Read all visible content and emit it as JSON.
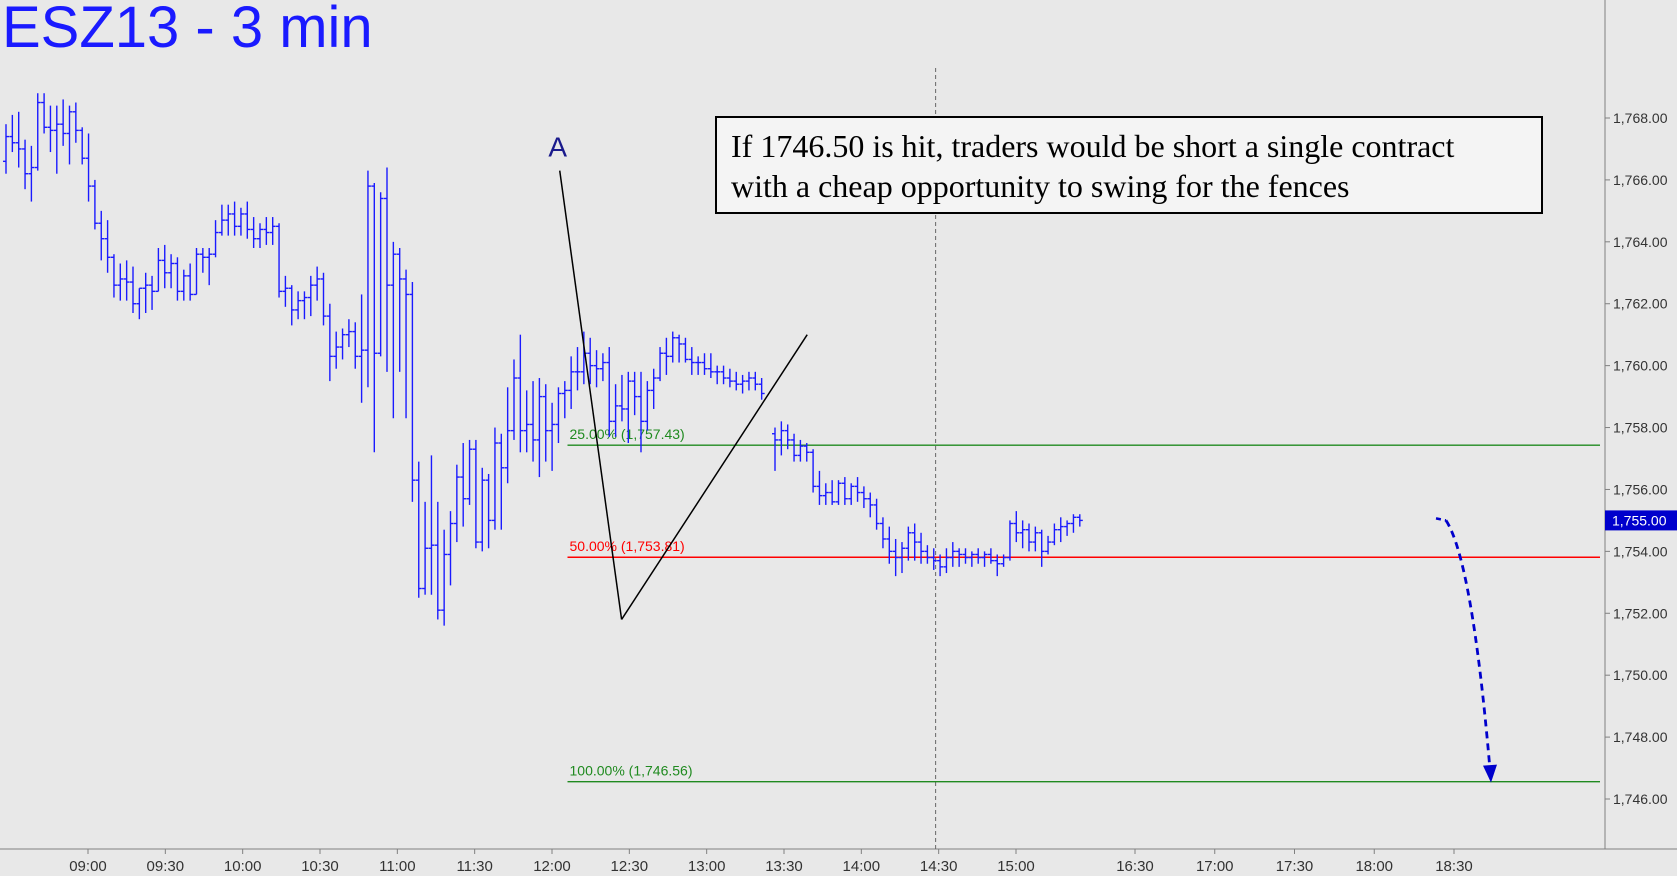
{
  "title": "ESZ13 - 3 min",
  "note": {
    "line1": "If 1746.50 is hit, traders would be short a single contract",
    "line2": "with a cheap opportunity to swing for the fences"
  },
  "colors": {
    "background": "#e8e8e8",
    "bars": "#1a1aff",
    "fib_green": "#1f8a1f",
    "fib_red": "#ff0000",
    "price_tag": "#0000cc"
  },
  "chart_data": {
    "type": "bar",
    "subtype": "ohlc",
    "title": "ESZ13 - 3 min",
    "ylim": [
      1745,
      1770
    ],
    "y_ticks": [
      "1,746.00",
      "1,748.00",
      "1,750.00",
      "1,752.00",
      "1,754.00",
      "1,756.00",
      "1,758.00",
      "1,760.00",
      "1,762.00",
      "1,764.00",
      "1,766.00",
      "1,768.00"
    ],
    "x_ticks": [
      "09:00",
      "09:30",
      "10:00",
      "10:30",
      "11:00",
      "11:30",
      "12:00",
      "12:30",
      "13:00",
      "13:30",
      "14:00",
      "14:30",
      "15:00",
      "16:30",
      "17:00",
      "17:30",
      "18:00",
      "18:30"
    ],
    "last_price": "1,755.00",
    "pattern_label": "A",
    "fib_levels": [
      {
        "label": "25.00% (1,757.43)",
        "value": 1757.43,
        "color": "green"
      },
      {
        "label": "50.00% (1,753.81)",
        "value": 1753.81,
        "color": "red"
      },
      {
        "label": "100.00% (1,746.56)",
        "value": 1746.56,
        "color": "green"
      }
    ],
    "pattern_points": [
      {
        "time": "12:03",
        "price": 1766.3
      },
      {
        "time": "12:27",
        "price": 1751.8
      },
      {
        "time": "13:39",
        "price": 1761.0
      }
    ],
    "projection": {
      "from_time": "18:30",
      "from_price": 1755.0,
      "to_price": 1746.56
    },
    "session_break_time": "15:15",
    "bars": [
      [
        1766.6,
        1767.8,
        1766.2,
        1767.4
      ],
      [
        1767.4,
        1768.1,
        1766.9,
        1767.2
      ],
      [
        1767.2,
        1768.2,
        1766.4,
        1767.0
      ],
      [
        1767.0,
        1767.3,
        1765.7,
        1766.2
      ],
      [
        1766.2,
        1767.1,
        1765.3,
        1766.4
      ],
      [
        1766.4,
        1768.8,
        1766.3,
        1768.5
      ],
      [
        1768.5,
        1768.8,
        1767.5,
        1767.7
      ],
      [
        1767.7,
        1768.4,
        1766.9,
        1767.6
      ],
      [
        1767.6,
        1768.4,
        1766.2,
        1767.8
      ],
      [
        1767.8,
        1768.6,
        1767.1,
        1767.5
      ],
      [
        1767.5,
        1768.4,
        1766.5,
        1768.2
      ],
      [
        1768.2,
        1768.5,
        1767.2,
        1767.6
      ],
      [
        1767.6,
        1767.7,
        1766.5,
        1766.7
      ],
      [
        1766.7,
        1767.5,
        1765.3,
        1765.8
      ],
      [
        1765.8,
        1766.0,
        1764.4,
        1764.6
      ],
      [
        1764.6,
        1765.0,
        1763.4,
        1764.1
      ],
      [
        1764.1,
        1764.7,
        1763.0,
        1763.5
      ],
      [
        1763.5,
        1763.6,
        1762.2,
        1762.6
      ],
      [
        1762.6,
        1763.3,
        1762.1,
        1762.8
      ],
      [
        1762.8,
        1763.4,
        1762.1,
        1762.7
      ],
      [
        1762.7,
        1763.2,
        1761.7,
        1762.0
      ],
      [
        1762.0,
        1762.5,
        1761.5,
        1762.5
      ],
      [
        1762.5,
        1763.0,
        1761.7,
        1762.6
      ],
      [
        1762.6,
        1762.9,
        1761.8,
        1762.4
      ],
      [
        1762.4,
        1763.8,
        1762.4,
        1763.4
      ],
      [
        1763.4,
        1763.9,
        1762.5,
        1763.0
      ],
      [
        1763.0,
        1763.6,
        1762.5,
        1763.3
      ],
      [
        1763.3,
        1763.5,
        1762.1,
        1762.4
      ],
      [
        1762.4,
        1763.1,
        1762.1,
        1762.9
      ],
      [
        1762.9,
        1763.3,
        1762.1,
        1762.3
      ],
      [
        1762.3,
        1763.8,
        1762.3,
        1763.6
      ],
      [
        1763.6,
        1763.8,
        1763.0,
        1763.5
      ],
      [
        1763.5,
        1763.8,
        1762.6,
        1763.6
      ],
      [
        1763.6,
        1764.7,
        1763.5,
        1764.3
      ],
      [
        1764.3,
        1765.2,
        1764.2,
        1764.7
      ],
      [
        1764.7,
        1765.2,
        1764.2,
        1764.9
      ],
      [
        1764.9,
        1765.3,
        1764.2,
        1764.5
      ],
      [
        1764.5,
        1765.1,
        1764.2,
        1764.9
      ],
      [
        1764.9,
        1765.3,
        1764.1,
        1764.4
      ],
      [
        1764.4,
        1764.8,
        1763.8,
        1764.1
      ],
      [
        1764.1,
        1764.6,
        1763.8,
        1764.4
      ],
      [
        1764.4,
        1764.8,
        1763.9,
        1764.3
      ],
      [
        1764.3,
        1764.8,
        1763.9,
        1764.5
      ],
      [
        1764.5,
        1764.6,
        1762.2,
        1762.4
      ],
      [
        1762.4,
        1762.9,
        1761.9,
        1762.5
      ],
      [
        1762.5,
        1762.6,
        1761.3,
        1761.8
      ],
      [
        1761.8,
        1762.4,
        1761.5,
        1762.1
      ],
      [
        1762.1,
        1762.4,
        1761.5,
        1762.2
      ],
      [
        1762.2,
        1762.9,
        1761.6,
        1762.6
      ],
      [
        1762.6,
        1763.2,
        1762.1,
        1762.8
      ],
      [
        1762.8,
        1763.0,
        1761.3,
        1761.6
      ],
      [
        1761.6,
        1762.0,
        1759.5,
        1760.3
      ],
      [
        1760.3,
        1761.1,
        1759.9,
        1760.6
      ],
      [
        1760.6,
        1761.2,
        1760.2,
        1761.0
      ],
      [
        1761.0,
        1761.5,
        1760.6,
        1761.1
      ],
      [
        1761.1,
        1761.4,
        1759.9,
        1760.3
      ],
      [
        1760.3,
        1762.3,
        1758.8,
        1760.5
      ],
      [
        1760.5,
        1766.3,
        1759.3,
        1765.8
      ],
      [
        1765.8,
        1765.9,
        1757.2,
        1760.4
      ],
      [
        1760.4,
        1765.6,
        1760.3,
        1765.4
      ],
      [
        1765.4,
        1766.4,
        1759.8,
        1762.6
      ],
      [
        1762.6,
        1764.0,
        1758.3,
        1763.6
      ],
      [
        1763.6,
        1763.8,
        1759.8,
        1762.8
      ],
      [
        1762.8,
        1763.1,
        1758.3,
        1762.3
      ],
      [
        1762.3,
        1762.7,
        1755.6,
        1756.3
      ],
      [
        1756.3,
        1756.9,
        1752.5,
        1752.8
      ],
      [
        1752.8,
        1755.6,
        1752.6,
        1754.1
      ],
      [
        1754.1,
        1757.1,
        1752.6,
        1754.2
      ],
      [
        1754.2,
        1755.6,
        1751.8,
        1752.1
      ],
      [
        1752.1,
        1754.7,
        1751.6,
        1753.9
      ],
      [
        1753.9,
        1755.3,
        1752.9,
        1754.9
      ],
      [
        1754.9,
        1756.8,
        1754.3,
        1756.4
      ],
      [
        1756.4,
        1757.5,
        1754.8,
        1755.7
      ],
      [
        1755.7,
        1757.6,
        1755.5,
        1757.3
      ],
      [
        1757.3,
        1757.6,
        1754.1,
        1754.3
      ],
      [
        1754.3,
        1756.7,
        1754.0,
        1756.3
      ],
      [
        1756.3,
        1756.5,
        1754.1,
        1755.0
      ],
      [
        1755.0,
        1758.0,
        1754.7,
        1757.5
      ],
      [
        1757.5,
        1757.8,
        1754.7,
        1756.7
      ],
      [
        1756.7,
        1759.3,
        1756.2,
        1757.9
      ],
      [
        1757.9,
        1760.2,
        1757.6,
        1759.6
      ],
      [
        1759.6,
        1761.0,
        1757.2,
        1757.9
      ],
      [
        1757.9,
        1759.2,
        1757.2,
        1758.1
      ],
      [
        1758.1,
        1759.5,
        1756.9,
        1757.6
      ],
      [
        1757.6,
        1759.6,
        1756.4,
        1759.0
      ],
      [
        1759.0,
        1759.4,
        1756.9,
        1757.9
      ],
      [
        1757.9,
        1758.8,
        1756.6,
        1758.1
      ],
      [
        1758.1,
        1759.3,
        1757.5,
        1759.1
      ],
      [
        1759.1,
        1759.5,
        1758.3,
        1759.2
      ],
      [
        1759.2,
        1760.3,
        1758.6,
        1759.8
      ],
      [
        1759.8,
        1760.6,
        1759.2,
        1759.8
      ],
      [
        1759.8,
        1761.1,
        1759.4,
        1760.4
      ],
      [
        1760.4,
        1760.9,
        1759.4,
        1760.0
      ],
      [
        1760.0,
        1760.5,
        1759.3,
        1759.9
      ],
      [
        1759.9,
        1760.4,
        1759.5,
        1760.1
      ],
      [
        1760.1,
        1760.6,
        1757.7,
        1758.2
      ],
      [
        1758.2,
        1759.4,
        1757.7,
        1758.7
      ],
      [
        1758.7,
        1759.7,
        1758.2,
        1758.6
      ],
      [
        1758.6,
        1759.8,
        1757.5,
        1759.5
      ],
      [
        1759.5,
        1759.8,
        1758.4,
        1759.0
      ],
      [
        1759.0,
        1759.8,
        1757.2,
        1758.2
      ],
      [
        1758.2,
        1759.5,
        1757.9,
        1759.2
      ],
      [
        1759.2,
        1759.9,
        1758.6,
        1759.6
      ],
      [
        1759.6,
        1760.6,
        1759.5,
        1760.4
      ],
      [
        1760.4,
        1760.9,
        1759.7,
        1760.3
      ],
      [
        1760.3,
        1761.1,
        1760.1,
        1760.9
      ],
      [
        1760.9,
        1761.0,
        1760.1,
        1760.7
      ],
      [
        1760.7,
        1760.9,
        1760.1,
        1760.2
      ],
      [
        1760.2,
        1760.6,
        1759.7,
        1760.1
      ],
      [
        1760.1,
        1760.3,
        1759.7,
        1760.1
      ],
      [
        1760.1,
        1760.4,
        1759.7,
        1759.9
      ],
      [
        1759.9,
        1760.4,
        1759.6,
        1759.8
      ],
      [
        1759.8,
        1760.0,
        1759.4,
        1759.8
      ],
      [
        1759.8,
        1760.0,
        1759.4,
        1759.6
      ],
      [
        1759.6,
        1759.9,
        1759.3,
        1759.5
      ],
      [
        1759.5,
        1759.8,
        1759.2,
        1759.4
      ],
      [
        1759.4,
        1759.7,
        1759.1,
        1759.5
      ],
      [
        1759.5,
        1759.8,
        1759.2,
        1759.6
      ],
      [
        1759.6,
        1759.8,
        1759.2,
        1759.4
      ],
      [
        1759.4,
        1759.6,
        1758.9,
        1759.1
      ],
      [
        1757.8,
        1758.0,
        1756.6,
        1757.6
      ],
      [
        1757.6,
        1758.2,
        1757.1,
        1757.9
      ],
      [
        1757.9,
        1758.1,
        1757.3,
        1757.6
      ],
      [
        1757.6,
        1757.8,
        1756.9,
        1757.1
      ],
      [
        1757.1,
        1757.6,
        1756.9,
        1757.4
      ],
      [
        1757.4,
        1757.5,
        1756.9,
        1757.2
      ],
      [
        1757.2,
        1757.3,
        1755.9,
        1756.1
      ],
      [
        1756.1,
        1756.6,
        1755.5,
        1755.8
      ],
      [
        1755.8,
        1756.2,
        1755.5,
        1755.9
      ],
      [
        1755.9,
        1756.3,
        1755.5,
        1755.6
      ],
      [
        1755.6,
        1756.3,
        1755.5,
        1756.2
      ],
      [
        1756.2,
        1756.4,
        1755.5,
        1755.7
      ],
      [
        1755.7,
        1756.2,
        1755.5,
        1756.1
      ],
      [
        1756.1,
        1756.4,
        1755.6,
        1755.9
      ],
      [
        1755.9,
        1756.1,
        1755.4,
        1755.7
      ],
      [
        1755.7,
        1755.9,
        1755.1,
        1755.5
      ],
      [
        1755.5,
        1755.7,
        1754.7,
        1754.9
      ],
      [
        1754.9,
        1755.1,
        1754.1,
        1754.4
      ],
      [
        1754.4,
        1754.8,
        1753.6,
        1754.0
      ],
      [
        1754.0,
        1754.4,
        1753.2,
        1753.8
      ],
      [
        1753.8,
        1754.3,
        1753.3,
        1754.1
      ],
      [
        1754.1,
        1754.8,
        1753.7,
        1754.6
      ],
      [
        1754.6,
        1754.9,
        1753.7,
        1754.3
      ],
      [
        1754.3,
        1754.6,
        1753.6,
        1754.0
      ],
      [
        1754.0,
        1754.2,
        1753.6,
        1753.8
      ],
      [
        1753.8,
        1754.1,
        1753.4,
        1753.7
      ],
      [
        1753.7,
        1753.9,
        1753.2,
        1753.5
      ],
      [
        1753.5,
        1754.1,
        1753.3,
        1753.8
      ],
      [
        1753.8,
        1754.3,
        1753.5,
        1754.0
      ],
      [
        1754.0,
        1754.1,
        1753.5,
        1753.9
      ],
      [
        1753.9,
        1754.1,
        1753.6,
        1753.8
      ],
      [
        1753.8,
        1754.0,
        1753.5,
        1753.9
      ],
      [
        1753.9,
        1754.1,
        1753.6,
        1753.8
      ],
      [
        1753.8,
        1754.0,
        1753.5,
        1753.9
      ],
      [
        1753.9,
        1754.1,
        1753.6,
        1753.7
      ],
      [
        1753.7,
        1753.9,
        1753.2,
        1753.6
      ],
      [
        1753.6,
        1753.9,
        1753.5,
        1753.8
      ],
      [
        1753.8,
        1755.0,
        1753.7,
        1754.9
      ],
      [
        1754.9,
        1755.3,
        1754.3,
        1754.6
      ],
      [
        1754.6,
        1755.0,
        1754.1,
        1754.7
      ],
      [
        1754.7,
        1754.9,
        1754.0,
        1754.3
      ],
      [
        1754.3,
        1754.8,
        1754.0,
        1754.6
      ],
      [
        1754.6,
        1754.7,
        1753.5,
        1754.0
      ],
      [
        1754.0,
        1754.5,
        1753.9,
        1754.3
      ],
      [
        1754.3,
        1754.9,
        1754.2,
        1754.7
      ],
      [
        1754.7,
        1755.1,
        1754.3,
        1754.8
      ],
      [
        1754.8,
        1755.0,
        1754.5,
        1754.9
      ],
      [
        1754.9,
        1755.2,
        1754.6,
        1755.1
      ],
      [
        1755.1,
        1755.2,
        1754.8,
        1755.0
      ]
    ]
  }
}
